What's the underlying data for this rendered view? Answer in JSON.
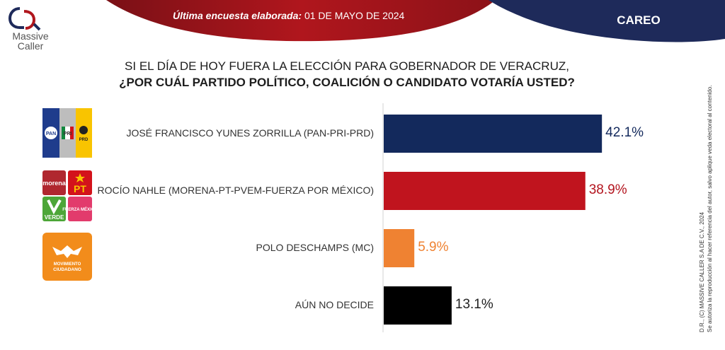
{
  "brand": {
    "name_line1": "Massive",
    "name_line2": "Caller"
  },
  "header": {
    "survey_label": "Última encuesta elaborada:",
    "survey_date": "01 DE MAYO DE 2024",
    "section": "CAREO"
  },
  "question": {
    "line1": "SI EL DÍA DE HOY FUERA LA ELECCIÓN PARA GOBERNADOR DE VERACRUZ,",
    "line2": "¿POR CUÁL PARTIDO POLÍTICO, COALICIÓN O CANDIDATO VOTARÍA USTED?"
  },
  "party_logos": {
    "pan": "PAN",
    "pri": "PRI",
    "prd": "PRD",
    "morena": "morena",
    "pt": "PT",
    "verde": "VERDE",
    "fuerza": "FUERZA MÉXICO",
    "mc_line1": "MOVIMIENTO",
    "mc_line2": "CIUDADANO"
  },
  "chart_data": {
    "type": "bar",
    "orientation": "horizontal",
    "categories": [
      "JOSÉ FRANCISCO YUNES ZORRILLA (PAN-PRI-PRD)",
      "ROCÍO NAHLE (MORENA-PT-PVEM-FUERZA POR MÉXICO)",
      "POLO DESCHAMPS (MC)",
      "AÚN NO DECIDE"
    ],
    "values": [
      42.1,
      38.9,
      5.9,
      13.1
    ],
    "value_labels": [
      "42.1%",
      "38.9%",
      "5.9%",
      "13.1%"
    ],
    "colors": [
      "#13295c",
      "#c0141e",
      "#ef8232",
      "#000000"
    ],
    "value_label_colors": [
      "#13295c",
      "#b3141e",
      "#ef8232",
      "#222222"
    ],
    "xlim": [
      0,
      50
    ],
    "grid": false,
    "legend": "none"
  },
  "footnote": {
    "line1": "D.R., (C) MASSIVE CALLER S.A DE C.V., 2024",
    "line2": "Se autoriza la reproducción al hacer referencia del autor, salvo aplique veda electoral al contenido."
  },
  "colors": {
    "header_red": "#a0141b",
    "header_navy": "#1e2a5a",
    "pan_blue": "#1f3c8c",
    "pri_green": "#13883e",
    "prd_yellow": "#f9c400",
    "morena": "#b0272f",
    "pt_red": "#d3131b",
    "verde": "#4da638",
    "fuerza": "#e23b6c",
    "mc_orange": "#f28c1b"
  }
}
